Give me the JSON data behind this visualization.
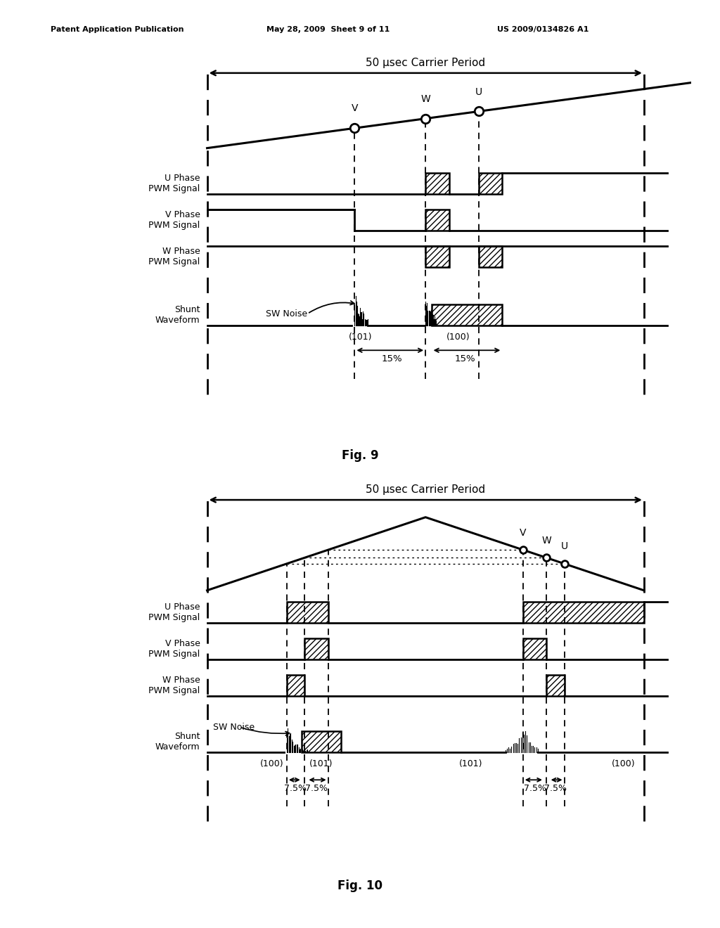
{
  "header_left": "Patent Application Publication",
  "header_mid": "May 28, 2009  Sheet 9 of 11",
  "header_right": "US 2009/0134826 A1",
  "fig9_title": "50 μsec Carrier Period",
  "fig10_title": "50 μsec Carrier Period",
  "fig9_label": "Fig. 9",
  "fig10_label": "Fig. 10",
  "bg_color": "#ffffff",
  "line_color": "#000000"
}
